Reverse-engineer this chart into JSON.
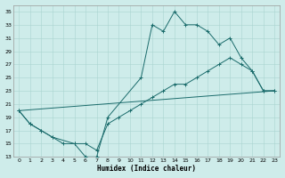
{
  "xlabel": "Humidex (Indice chaleur)",
  "background_color": "#ceecea",
  "grid_color": "#aad4d0",
  "line_color": "#1a6b6b",
  "ylim": [
    13,
    36
  ],
  "xlim": [
    -0.5,
    23.5
  ],
  "yticks": [
    13,
    15,
    17,
    19,
    21,
    23,
    25,
    27,
    29,
    31,
    33,
    35
  ],
  "xticks": [
    0,
    1,
    2,
    3,
    4,
    5,
    6,
    7,
    8,
    9,
    10,
    11,
    12,
    13,
    14,
    15,
    16,
    17,
    18,
    19,
    20,
    21,
    22,
    23
  ],
  "line1_x": [
    0,
    1,
    2,
    3,
    5,
    6,
    7,
    8,
    11,
    12,
    13,
    14,
    15,
    16,
    17,
    18,
    19,
    20,
    21,
    22,
    23
  ],
  "line1_y": [
    20,
    18,
    17,
    16,
    15,
    13,
    13,
    19,
    25,
    33,
    32,
    35,
    33,
    33,
    32,
    30,
    31,
    28,
    26,
    23,
    23
  ],
  "line2_x": [
    0,
    1,
    2,
    3,
    4,
    5,
    6,
    7,
    8,
    9,
    10,
    11,
    12,
    13,
    14,
    15,
    16,
    17,
    18,
    19,
    20,
    21,
    22,
    23
  ],
  "line2_y": [
    20,
    18,
    17,
    16,
    15,
    15,
    15,
    14,
    18,
    19,
    20,
    21,
    22,
    23,
    24,
    24,
    25,
    26,
    27,
    28,
    27,
    26,
    23,
    23
  ],
  "line3_x": [
    0,
    23
  ],
  "line3_y": [
    20,
    23
  ]
}
